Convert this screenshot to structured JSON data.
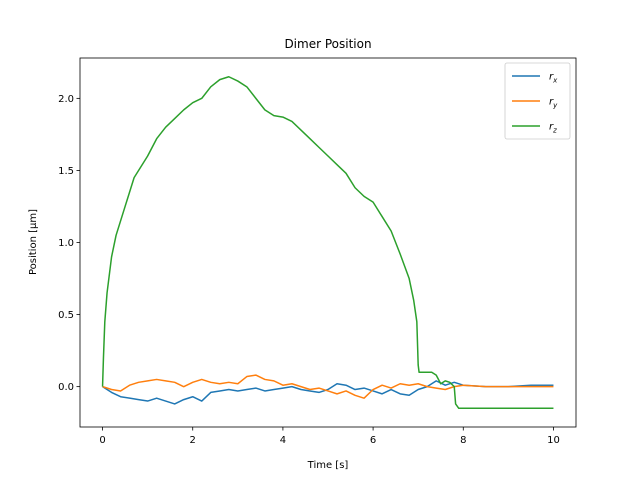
{
  "chart_data": {
    "type": "line",
    "title": "Dimer Position",
    "xlabel": "Time [s]",
    "ylabel": "Position [μm]",
    "xlim": [
      -0.5,
      10.5
    ],
    "ylim": [
      -0.28,
      2.28
    ],
    "xticks": [
      0,
      2,
      4,
      6,
      8,
      10
    ],
    "xtick_labels": [
      "0",
      "2",
      "4",
      "6",
      "8",
      "10"
    ],
    "yticks": [
      0.0,
      0.5,
      1.0,
      1.5,
      2.0
    ],
    "ytick_labels": [
      "0.0",
      "0.5",
      "1.0",
      "1.5",
      "2.0"
    ],
    "grid": false,
    "legend_position": "top-right",
    "series": [
      {
        "name": "r_x",
        "label_main": "r",
        "label_sub": "x",
        "color": "#1f77b4",
        "x": [
          0,
          0.2,
          0.4,
          0.6,
          0.8,
          1.0,
          1.2,
          1.4,
          1.6,
          1.8,
          2.0,
          2.2,
          2.4,
          2.6,
          2.8,
          3.0,
          3.2,
          3.4,
          3.6,
          3.8,
          4.0,
          4.2,
          4.4,
          4.6,
          4.8,
          5.0,
          5.2,
          5.4,
          5.6,
          5.8,
          6.0,
          6.2,
          6.4,
          6.6,
          6.8,
          7.0,
          7.2,
          7.4,
          7.6,
          7.8,
          8.0,
          8.5,
          9.0,
          9.5,
          10.0
        ],
        "y": [
          0.0,
          -0.04,
          -0.07,
          -0.08,
          -0.09,
          -0.1,
          -0.08,
          -0.1,
          -0.12,
          -0.09,
          -0.07,
          -0.1,
          -0.04,
          -0.03,
          -0.02,
          -0.03,
          -0.02,
          -0.01,
          -0.03,
          -0.02,
          -0.01,
          0.0,
          -0.02,
          -0.03,
          -0.04,
          -0.02,
          0.02,
          0.01,
          -0.02,
          -0.01,
          -0.03,
          -0.05,
          -0.02,
          -0.05,
          -0.06,
          -0.02,
          0.0,
          0.04,
          0.01,
          0.03,
          0.01,
          0.0,
          0.0,
          0.01,
          0.01
        ]
      },
      {
        "name": "r_y",
        "label_main": "r",
        "label_sub": "y",
        "color": "#ff7f0e",
        "x": [
          0,
          0.2,
          0.4,
          0.6,
          0.8,
          1.0,
          1.2,
          1.4,
          1.6,
          1.8,
          2.0,
          2.2,
          2.4,
          2.6,
          2.8,
          3.0,
          3.2,
          3.4,
          3.6,
          3.8,
          4.0,
          4.2,
          4.4,
          4.6,
          4.8,
          5.0,
          5.2,
          5.4,
          5.6,
          5.8,
          6.0,
          6.2,
          6.4,
          6.6,
          6.8,
          7.0,
          7.2,
          7.4,
          7.6,
          7.8,
          8.0,
          8.5,
          9.0,
          9.5,
          10.0
        ],
        "y": [
          0.0,
          -0.02,
          -0.03,
          0.01,
          0.03,
          0.04,
          0.05,
          0.04,
          0.03,
          0.0,
          0.03,
          0.05,
          0.03,
          0.02,
          0.03,
          0.02,
          0.07,
          0.08,
          0.05,
          0.04,
          0.01,
          0.02,
          0.0,
          -0.02,
          -0.01,
          -0.03,
          -0.05,
          -0.03,
          -0.06,
          -0.08,
          -0.02,
          0.01,
          -0.01,
          0.02,
          0.01,
          0.02,
          0.0,
          -0.01,
          -0.02,
          0.0,
          0.01,
          0.0,
          0.0,
          0.0,
          0.0
        ]
      },
      {
        "name": "r_z",
        "label_main": "r",
        "label_sub": "z",
        "color": "#2ca02c",
        "x": [
          0,
          0.02,
          0.05,
          0.1,
          0.2,
          0.3,
          0.5,
          0.7,
          1.0,
          1.2,
          1.4,
          1.6,
          1.8,
          2.0,
          2.2,
          2.4,
          2.6,
          2.8,
          3.0,
          3.2,
          3.4,
          3.6,
          3.8,
          4.0,
          4.2,
          4.4,
          4.6,
          4.8,
          5.0,
          5.2,
          5.4,
          5.6,
          5.8,
          6.0,
          6.2,
          6.4,
          6.6,
          6.8,
          6.9,
          6.97,
          7.0,
          7.02,
          7.3,
          7.4,
          7.5,
          7.6,
          7.7,
          7.8,
          7.83,
          7.9,
          8.0,
          8.5,
          9.0,
          9.5,
          10.0
        ],
        "y": [
          0.0,
          0.2,
          0.45,
          0.65,
          0.9,
          1.05,
          1.25,
          1.45,
          1.6,
          1.72,
          1.8,
          1.86,
          1.92,
          1.97,
          2.0,
          2.08,
          2.13,
          2.15,
          2.12,
          2.08,
          2.0,
          1.92,
          1.88,
          1.87,
          1.84,
          1.78,
          1.72,
          1.66,
          1.6,
          1.54,
          1.48,
          1.38,
          1.32,
          1.28,
          1.18,
          1.08,
          0.92,
          0.75,
          0.6,
          0.45,
          0.15,
          0.1,
          0.1,
          0.08,
          0.02,
          0.04,
          0.03,
          0.0,
          -0.12,
          -0.15,
          -0.15,
          -0.15,
          -0.15,
          -0.15,
          -0.15
        ]
      }
    ]
  }
}
